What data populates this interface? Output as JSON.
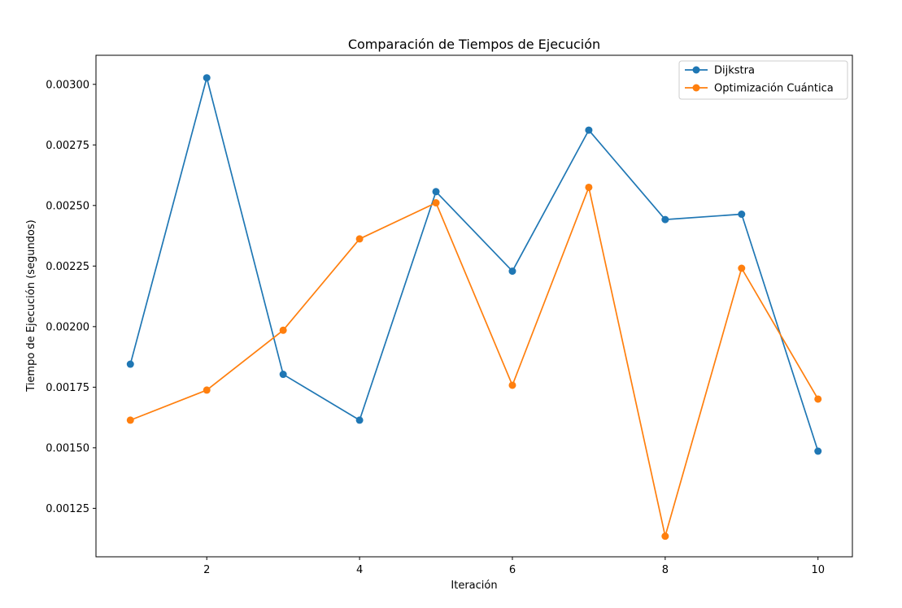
{
  "chart_data": {
    "type": "line",
    "title": "Comparación de Tiempos de Ejecución",
    "xlabel": "Iteración",
    "ylabel": "Tiempo de Ejecución (segundos)",
    "x": [
      1,
      2,
      3,
      4,
      5,
      6,
      7,
      8,
      9,
      10
    ],
    "xticks": [
      2,
      4,
      6,
      8,
      10
    ],
    "xtick_labels": [
      "2",
      "4",
      "6",
      "8",
      "10"
    ],
    "xlim": [
      0.55,
      10.45
    ],
    "yticks": [
      0.00125,
      0.0015,
      0.00175,
      0.002,
      0.00225,
      0.0025,
      0.00275,
      0.003
    ],
    "ytick_labels": [
      "0.00125",
      "0.00150",
      "0.00175",
      "0.00200",
      "0.00225",
      "0.00250",
      "0.00275",
      "0.00300"
    ],
    "ylim": [
      0.00105,
      0.00312
    ],
    "grid": false,
    "legend_position": "top-right",
    "series": [
      {
        "name": "Dijkstra",
        "color": "#1f77b4",
        "values": [
          0.001845,
          0.003027,
          0.001803,
          0.001614,
          0.002557,
          0.002229,
          0.002811,
          0.002442,
          0.002464,
          0.001486
        ]
      },
      {
        "name": "Optimización Cuántica",
        "color": "#ff7f0e",
        "values": [
          0.001614,
          0.001738,
          0.001985,
          0.002362,
          0.002511,
          0.001758,
          0.002575,
          0.001135,
          0.002241,
          0.001701
        ]
      }
    ]
  }
}
